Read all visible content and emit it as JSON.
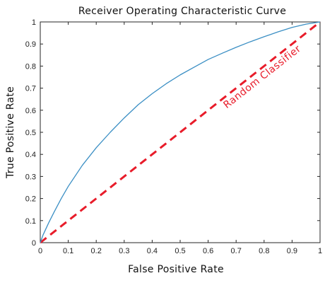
{
  "chart_data": {
    "type": "line",
    "title": "Receiver Operating Characteristic Curve",
    "xlabel": "False Positive Rate",
    "ylabel": "True Positive Rate",
    "xlim": [
      0,
      1
    ],
    "ylim": [
      0,
      1
    ],
    "xticks": [
      "0",
      "0.1",
      "0.2",
      "0.3",
      "0.4",
      "0.5",
      "0.6",
      "0.7",
      "0.8",
      "0.9",
      "1"
    ],
    "yticks": [
      "0",
      "0.1",
      "0.2",
      "0.3",
      "0.4",
      "0.5",
      "0.6",
      "0.7",
      "0.8",
      "0.9",
      "1"
    ],
    "grid": false,
    "series": [
      {
        "color": "#3b8fc4",
        "style": "solid",
        "x": [
          0,
          0.01,
          0.03,
          0.05,
          0.075,
          0.1,
          0.15,
          0.2,
          0.25,
          0.3,
          0.35,
          0.4,
          0.45,
          0.5,
          0.55,
          0.6,
          0.65,
          0.7,
          0.75,
          0.8,
          0.85,
          0.9,
          0.95,
          1.0
        ],
        "y": [
          0,
          0.035,
          0.09,
          0.14,
          0.2,
          0.255,
          0.35,
          0.43,
          0.5,
          0.565,
          0.625,
          0.675,
          0.72,
          0.76,
          0.795,
          0.83,
          0.858,
          0.885,
          0.91,
          0.933,
          0.955,
          0.975,
          0.99,
          1.0
        ]
      },
      {
        "color": "#e81c2a",
        "style": "dashed",
        "x": [
          0,
          1
        ],
        "y": [
          0,
          1
        ]
      }
    ],
    "annotations": [
      {
        "text": "Random Classifier",
        "x": 0.8,
        "y": 0.74,
        "color": "#e81c2a"
      }
    ]
  }
}
